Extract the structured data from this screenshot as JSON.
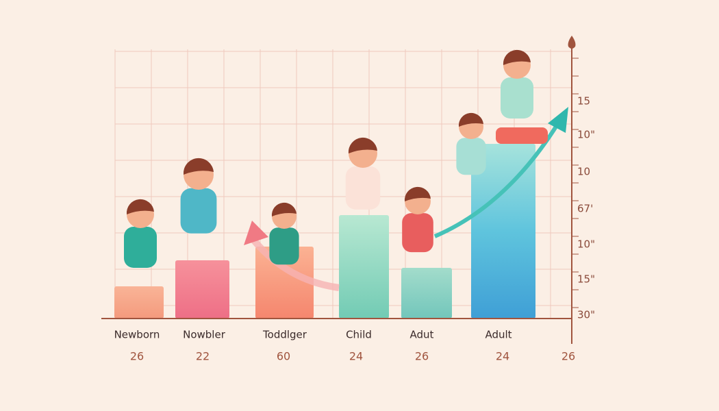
{
  "stages": [
    {
      "label": "Newborn",
      "number": "26"
    },
    {
      "label": "Nowbler",
      "number": "22"
    },
    {
      "label": "Toddlger",
      "number": "60"
    },
    {
      "label": "Child",
      "number": "24"
    },
    {
      "label": "Adut",
      "number": "26"
    },
    {
      "label": "Adult",
      "number": "24"
    }
  ],
  "end_number": "26",
  "right_axis_labels": [
    "15",
    "10\"",
    "10",
    "67'",
    "10\"",
    "15\"",
    "30\""
  ]
}
